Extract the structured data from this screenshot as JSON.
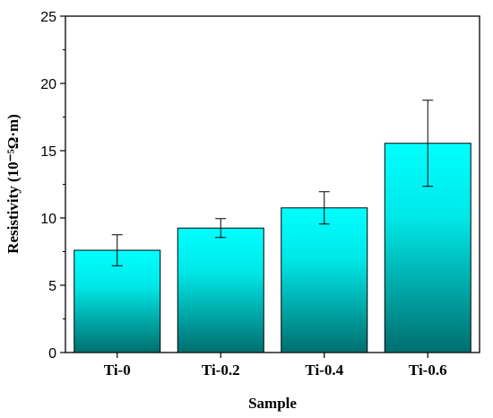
{
  "chart_data": {
    "type": "bar",
    "xlabel": "Sample",
    "ylabel": "Resistivity (10⁻⁵Ω·m)",
    "categories": [
      "Ti-0",
      "Ti-0.2",
      "Ti-0.4",
      "Ti-0.6"
    ],
    "values": [
      7.6,
      9.25,
      10.75,
      15.55
    ],
    "errors": [
      1.15,
      0.7,
      1.2,
      3.2
    ],
    "ylim": [
      0,
      25
    ],
    "yticks": [
      0,
      5,
      10,
      15,
      20,
      25
    ],
    "grid": false,
    "legend": "none",
    "colors": {
      "bar_top": "#00ffff",
      "bar_bottom": "#006e6e",
      "axis": "#000000",
      "error_bar": "#000000"
    }
  }
}
